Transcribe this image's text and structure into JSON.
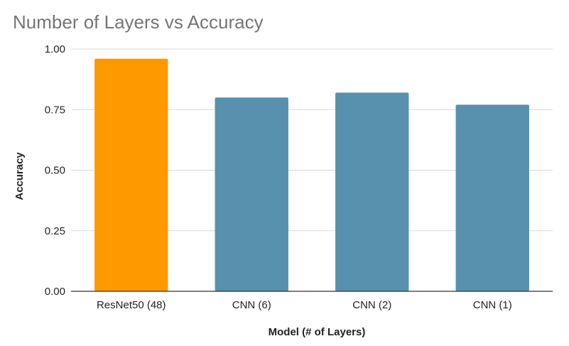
{
  "chart_data": {
    "type": "bar",
    "title": "Number of Layers vs Accuracy",
    "xlabel": "Model (# of Layers)",
    "ylabel": "Accuracy",
    "categories": [
      "ResNet50 (48)",
      "CNN (6)",
      "CNN (2)",
      "CNN (1)"
    ],
    "values": [
      0.96,
      0.8,
      0.82,
      0.77
    ],
    "bar_colors": [
      "#ff9900",
      "#5891ad",
      "#5891ad",
      "#5891ad"
    ],
    "ylim": [
      0,
      1.0
    ],
    "yticks": [
      "0.00",
      "0.25",
      "0.50",
      "0.75",
      "1.00"
    ],
    "ytick_values": [
      0,
      0.25,
      0.5,
      0.75,
      1.0
    ],
    "grid": true,
    "legend": "none"
  }
}
